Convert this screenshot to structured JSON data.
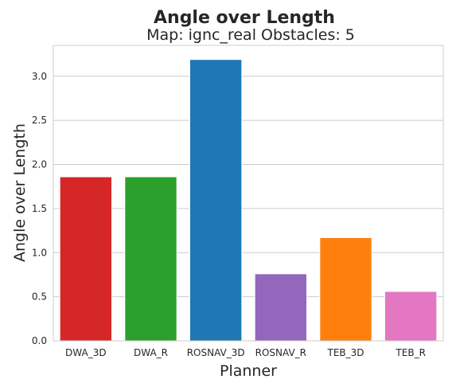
{
  "chart_data": {
    "type": "bar",
    "suptitle": "Angle over Length",
    "title": "Map: ignc_real Obstacles: 5",
    "xlabel": "Planner",
    "ylabel": "Angle over Length",
    "categories": [
      "DWA_3D",
      "DWA_R",
      "ROSNAV_3D",
      "ROSNAV_R",
      "TEB_3D",
      "TEB_R"
    ],
    "values": [
      1.86,
      1.86,
      3.19,
      0.76,
      1.17,
      0.56
    ],
    "colors": [
      "#d62728",
      "#2ca02c",
      "#1f77b4",
      "#9467bd",
      "#ff7f0e",
      "#e377c2"
    ],
    "ylim": [
      0,
      3.35
    ],
    "yticks": [
      "0.0",
      "0.5",
      "1.0",
      "1.5",
      "2.0",
      "2.5",
      "3.0"
    ],
    "grid": true
  }
}
